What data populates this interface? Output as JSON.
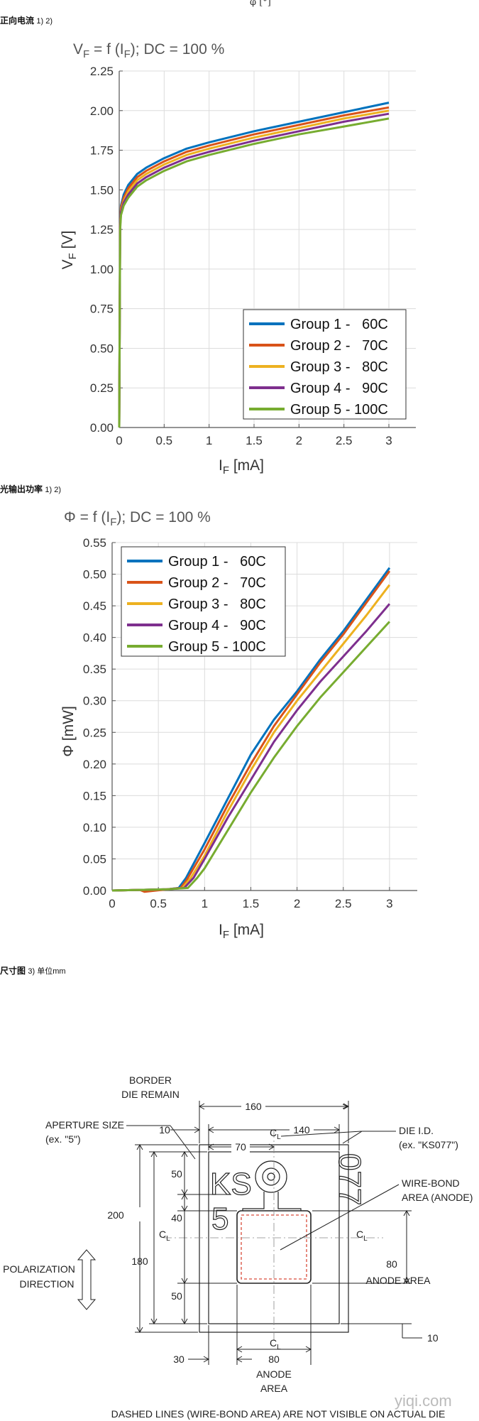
{
  "top_fragment": "φ [°]",
  "sections": {
    "forward_current": {
      "title": "正向电流",
      "note": "1) 2)"
    },
    "radiant_power": {
      "title": "光输出功率",
      "note": "1) 2)"
    },
    "dimensions": {
      "title": "尺寸图",
      "note": "3) 单位mm"
    }
  },
  "colors": {
    "group1": "#0072BD",
    "group2": "#D95319",
    "group3": "#EDB120",
    "group4": "#7E2F8E",
    "group5": "#77AC30"
  },
  "chart_data": [
    {
      "type": "line",
      "title_main": "V",
      "title_sub": "F",
      "title_mid": " = f (I",
      "title_sub2": "F",
      "title_end": "); DC = 100 %",
      "ylabel_main": "V",
      "ylabel_sub": "F",
      "ylabel_end": " [V]",
      "xlabel_main": "I",
      "xlabel_sub": "F",
      "xlabel_end": " [mA]",
      "xlim": [
        0,
        3.3
      ],
      "ylim": [
        0,
        2.25
      ],
      "xticks": [
        "0",
        "0.5",
        "1",
        "1.5",
        "2",
        "2.5",
        "3"
      ],
      "yticks": [
        "0.00",
        "0.25",
        "0.50",
        "0.75",
        "1.00",
        "1.25",
        "1.50",
        "1.75",
        "2.00",
        "2.25"
      ],
      "grid": true,
      "legend_position": "bottom-right",
      "series": [
        {
          "name": "Group 1 -   60C",
          "x": [
            0,
            0.01,
            0.02,
            0.05,
            0.1,
            0.2,
            0.3,
            0.5,
            0.75,
            1,
            1.5,
            2,
            2.5,
            3
          ],
          "y": [
            0,
            1.3,
            1.4,
            1.47,
            1.53,
            1.6,
            1.64,
            1.7,
            1.76,
            1.8,
            1.87,
            1.93,
            1.99,
            2.05
          ]
        },
        {
          "name": "Group 2 -   70C",
          "x": [
            0,
            0.01,
            0.02,
            0.05,
            0.1,
            0.2,
            0.3,
            0.5,
            0.75,
            1,
            1.5,
            2,
            2.5,
            3
          ],
          "y": [
            0,
            1.29,
            1.39,
            1.45,
            1.51,
            1.58,
            1.62,
            1.68,
            1.74,
            1.78,
            1.85,
            1.91,
            1.97,
            2.02
          ]
        },
        {
          "name": "Group 3 -   80C",
          "x": [
            0,
            0.01,
            0.02,
            0.05,
            0.1,
            0.2,
            0.3,
            0.5,
            0.75,
            1,
            1.5,
            2,
            2.5,
            3
          ],
          "y": [
            0,
            1.28,
            1.37,
            1.43,
            1.49,
            1.56,
            1.6,
            1.66,
            1.72,
            1.76,
            1.83,
            1.89,
            1.95,
            2.0
          ]
        },
        {
          "name": "Group 4 -   90C",
          "x": [
            0,
            0.01,
            0.02,
            0.05,
            0.1,
            0.2,
            0.3,
            0.5,
            0.75,
            1,
            1.5,
            2,
            2.5,
            3
          ],
          "y": [
            0,
            1.27,
            1.36,
            1.42,
            1.47,
            1.54,
            1.58,
            1.64,
            1.7,
            1.74,
            1.81,
            1.87,
            1.93,
            1.98
          ]
        },
        {
          "name": "Group 5 - 100C",
          "x": [
            0,
            0.01,
            0.02,
            0.05,
            0.1,
            0.2,
            0.3,
            0.5,
            0.75,
            1,
            1.5,
            2,
            2.5,
            3
          ],
          "y": [
            0,
            1.25,
            1.34,
            1.4,
            1.45,
            1.52,
            1.56,
            1.62,
            1.68,
            1.72,
            1.79,
            1.85,
            1.9,
            1.95
          ]
        }
      ]
    },
    {
      "type": "line",
      "title_main": "Φ",
      "title_mid": " = f (I",
      "title_sub2": "F",
      "title_end": "); DC = 100 %",
      "ylabel_main": "Φ [mW]",
      "xlabel_main": "I",
      "xlabel_sub": "F",
      "xlabel_end": " [mA]",
      "xlim": [
        0,
        3.3
      ],
      "ylim": [
        0,
        0.55
      ],
      "xticks": [
        "0",
        "0.5",
        "1",
        "1.5",
        "2",
        "2.5",
        "3"
      ],
      "yticks": [
        "0.00",
        "0.05",
        "0.10",
        "0.15",
        "0.20",
        "0.25",
        "0.30",
        "0.35",
        "0.40",
        "0.45",
        "0.50",
        "0.55"
      ],
      "grid": true,
      "legend_position": "top-left",
      "series": [
        {
          "name": "Group 1 -   60C",
          "x": [
            0,
            0.3,
            0.6,
            0.72,
            0.8,
            1,
            1.25,
            1.5,
            1.75,
            2,
            2.25,
            2.5,
            2.75,
            3
          ],
          "y": [
            0,
            0.001,
            0.002,
            0.004,
            0.02,
            0.075,
            0.145,
            0.215,
            0.27,
            0.315,
            0.365,
            0.41,
            0.46,
            0.51
          ]
        },
        {
          "name": "Group 2 -   70C",
          "x": [
            0,
            0.3,
            0.35,
            0.6,
            0.74,
            0.8,
            1,
            1.25,
            1.5,
            1.75,
            2,
            2.25,
            2.5,
            2.75,
            3
          ],
          "y": [
            0,
            0.001,
            -0.002,
            0.002,
            0.004,
            0.015,
            0.065,
            0.135,
            0.2,
            0.26,
            0.31,
            0.36,
            0.405,
            0.455,
            0.505
          ]
        },
        {
          "name": "Group 3 -   80C",
          "x": [
            0,
            0.3,
            0.6,
            0.76,
            0.85,
            1,
            1.25,
            1.5,
            1.75,
            2,
            2.25,
            2.5,
            2.75,
            3
          ],
          "y": [
            0,
            0.001,
            0.002,
            0.004,
            0.02,
            0.055,
            0.125,
            0.19,
            0.25,
            0.3,
            0.345,
            0.39,
            0.435,
            0.483
          ]
        },
        {
          "name": "Group 4 -   90C",
          "x": [
            0,
            0.3,
            0.6,
            0.78,
            0.88,
            1,
            1.25,
            1.5,
            1.75,
            2,
            2.25,
            2.5,
            2.75,
            3
          ],
          "y": [
            0,
            0.001,
            0.002,
            0.004,
            0.02,
            0.05,
            0.115,
            0.175,
            0.235,
            0.285,
            0.33,
            0.37,
            0.41,
            0.453
          ]
        },
        {
          "name": "Group 5 - 100C",
          "x": [
            0,
            0.3,
            0.6,
            0.82,
            0.92,
            1,
            1.25,
            1.5,
            1.75,
            2,
            2.25,
            2.5,
            2.75,
            3
          ],
          "y": [
            0,
            0.001,
            0.002,
            0.004,
            0.02,
            0.035,
            0.095,
            0.155,
            0.21,
            0.26,
            0.305,
            0.345,
            0.385,
            0.425
          ]
        }
      ]
    }
  ],
  "drawing": {
    "border_label_1": "BORDER",
    "border_label_2": "DIE REMAIN",
    "aperture_1": "APERTURE SIZE",
    "aperture_2": "(ex. \"5\")",
    "dieid_1": "DIE I.D.",
    "dieid_2": "(ex. \"KS077\")",
    "wirebond_1": "WIRE-BOND",
    "wirebond_2": "AREA (ANODE)",
    "polar_1": "POLARIZATION",
    "polar_2": "DIRECTION",
    "anode_area_r": "ANODE AREA",
    "anode_area_b1": "ANODE",
    "anode_area_b2": "AREA",
    "dim_160": "160",
    "dim_10a": "10",
    "dim_140": "140",
    "dim_70": "70",
    "dim_50a": "50",
    "dim_40": "40",
    "dim_50b": "50",
    "dim_200": "200",
    "dim_180": "180",
    "dim_80r": "80",
    "dim_10b": "10",
    "dim_30": "30",
    "dim_80b": "80",
    "cl": "C",
    "cl_sub": "L",
    "die_ks": "KS",
    "die_5": "5",
    "die_id": "077",
    "footnote": "DASHED LINES (WIRE-BOND AREA) ARE NOT VISIBLE ON ACTUAL DIE",
    "watermark": "yiqi.com"
  }
}
